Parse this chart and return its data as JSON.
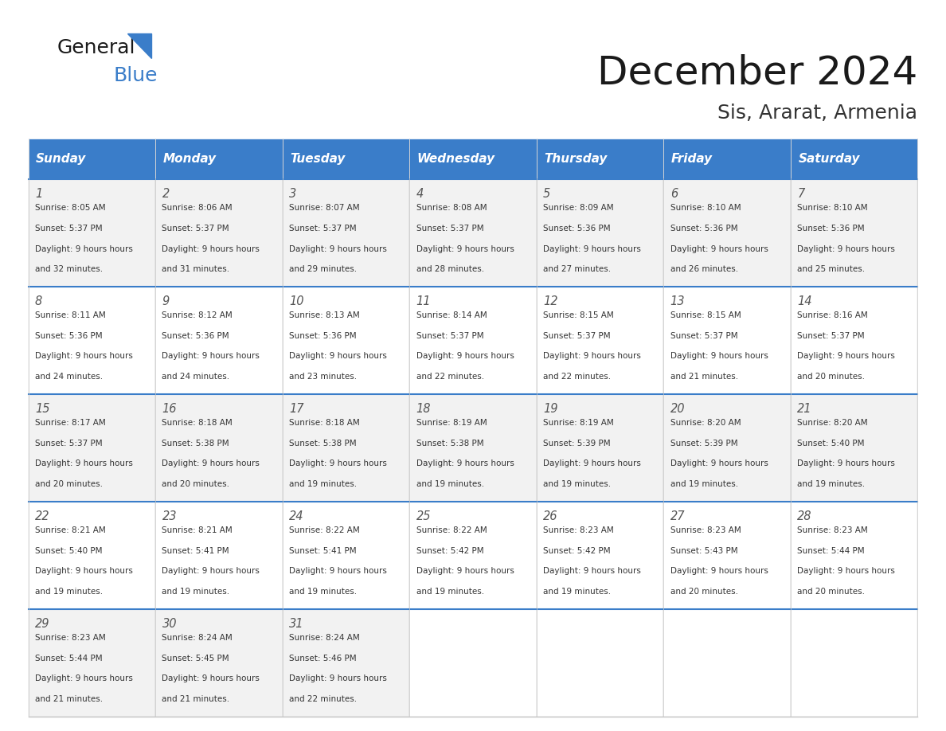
{
  "title": "December 2024",
  "subtitle": "Sis, Ararat, Armenia",
  "days_of_week": [
    "Sunday",
    "Monday",
    "Tuesday",
    "Wednesday",
    "Thursday",
    "Friday",
    "Saturday"
  ],
  "header_bg": "#3A7DC9",
  "header_text": "#FFFFFF",
  "row_bg_odd": "#F2F2F2",
  "row_bg_even": "#FFFFFF",
  "cell_border": "#C8C8C8",
  "day_num_color": "#555555",
  "body_text_color": "#333333",
  "title_color": "#1a1a1a",
  "subtitle_color": "#333333",
  "separator_color": "#3A7DC9",
  "calendar_data": [
    {
      "day": 1,
      "week": 0,
      "dow": 0,
      "sunrise": "8:05 AM",
      "sunset": "5:37 PM",
      "daylight": "9 hours and 32 minutes."
    },
    {
      "day": 2,
      "week": 0,
      "dow": 1,
      "sunrise": "8:06 AM",
      "sunset": "5:37 PM",
      "daylight": "9 hours and 31 minutes."
    },
    {
      "day": 3,
      "week": 0,
      "dow": 2,
      "sunrise": "8:07 AM",
      "sunset": "5:37 PM",
      "daylight": "9 hours and 29 minutes."
    },
    {
      "day": 4,
      "week": 0,
      "dow": 3,
      "sunrise": "8:08 AM",
      "sunset": "5:37 PM",
      "daylight": "9 hours and 28 minutes."
    },
    {
      "day": 5,
      "week": 0,
      "dow": 4,
      "sunrise": "8:09 AM",
      "sunset": "5:36 PM",
      "daylight": "9 hours and 27 minutes."
    },
    {
      "day": 6,
      "week": 0,
      "dow": 5,
      "sunrise": "8:10 AM",
      "sunset": "5:36 PM",
      "daylight": "9 hours and 26 minutes."
    },
    {
      "day": 7,
      "week": 0,
      "dow": 6,
      "sunrise": "8:10 AM",
      "sunset": "5:36 PM",
      "daylight": "9 hours and 25 minutes."
    },
    {
      "day": 8,
      "week": 1,
      "dow": 0,
      "sunrise": "8:11 AM",
      "sunset": "5:36 PM",
      "daylight": "9 hours and 24 minutes."
    },
    {
      "day": 9,
      "week": 1,
      "dow": 1,
      "sunrise": "8:12 AM",
      "sunset": "5:36 PM",
      "daylight": "9 hours and 24 minutes."
    },
    {
      "day": 10,
      "week": 1,
      "dow": 2,
      "sunrise": "8:13 AM",
      "sunset": "5:36 PM",
      "daylight": "9 hours and 23 minutes."
    },
    {
      "day": 11,
      "week": 1,
      "dow": 3,
      "sunrise": "8:14 AM",
      "sunset": "5:37 PM",
      "daylight": "9 hours and 22 minutes."
    },
    {
      "day": 12,
      "week": 1,
      "dow": 4,
      "sunrise": "8:15 AM",
      "sunset": "5:37 PM",
      "daylight": "9 hours and 22 minutes."
    },
    {
      "day": 13,
      "week": 1,
      "dow": 5,
      "sunrise": "8:15 AM",
      "sunset": "5:37 PM",
      "daylight": "9 hours and 21 minutes."
    },
    {
      "day": 14,
      "week": 1,
      "dow": 6,
      "sunrise": "8:16 AM",
      "sunset": "5:37 PM",
      "daylight": "9 hours and 20 minutes."
    },
    {
      "day": 15,
      "week": 2,
      "dow": 0,
      "sunrise": "8:17 AM",
      "sunset": "5:37 PM",
      "daylight": "9 hours and 20 minutes."
    },
    {
      "day": 16,
      "week": 2,
      "dow": 1,
      "sunrise": "8:18 AM",
      "sunset": "5:38 PM",
      "daylight": "9 hours and 20 minutes."
    },
    {
      "day": 17,
      "week": 2,
      "dow": 2,
      "sunrise": "8:18 AM",
      "sunset": "5:38 PM",
      "daylight": "9 hours and 19 minutes."
    },
    {
      "day": 18,
      "week": 2,
      "dow": 3,
      "sunrise": "8:19 AM",
      "sunset": "5:38 PM",
      "daylight": "9 hours and 19 minutes."
    },
    {
      "day": 19,
      "week": 2,
      "dow": 4,
      "sunrise": "8:19 AM",
      "sunset": "5:39 PM",
      "daylight": "9 hours and 19 minutes."
    },
    {
      "day": 20,
      "week": 2,
      "dow": 5,
      "sunrise": "8:20 AM",
      "sunset": "5:39 PM",
      "daylight": "9 hours and 19 minutes."
    },
    {
      "day": 21,
      "week": 2,
      "dow": 6,
      "sunrise": "8:20 AM",
      "sunset": "5:40 PM",
      "daylight": "9 hours and 19 minutes."
    },
    {
      "day": 22,
      "week": 3,
      "dow": 0,
      "sunrise": "8:21 AM",
      "sunset": "5:40 PM",
      "daylight": "9 hours and 19 minutes."
    },
    {
      "day": 23,
      "week": 3,
      "dow": 1,
      "sunrise": "8:21 AM",
      "sunset": "5:41 PM",
      "daylight": "9 hours and 19 minutes."
    },
    {
      "day": 24,
      "week": 3,
      "dow": 2,
      "sunrise": "8:22 AM",
      "sunset": "5:41 PM",
      "daylight": "9 hours and 19 minutes."
    },
    {
      "day": 25,
      "week": 3,
      "dow": 3,
      "sunrise": "8:22 AM",
      "sunset": "5:42 PM",
      "daylight": "9 hours and 19 minutes."
    },
    {
      "day": 26,
      "week": 3,
      "dow": 4,
      "sunrise": "8:23 AM",
      "sunset": "5:42 PM",
      "daylight": "9 hours and 19 minutes."
    },
    {
      "day": 27,
      "week": 3,
      "dow": 5,
      "sunrise": "8:23 AM",
      "sunset": "5:43 PM",
      "daylight": "9 hours and 20 minutes."
    },
    {
      "day": 28,
      "week": 3,
      "dow": 6,
      "sunrise": "8:23 AM",
      "sunset": "5:44 PM",
      "daylight": "9 hours and 20 minutes."
    },
    {
      "day": 29,
      "week": 4,
      "dow": 0,
      "sunrise": "8:23 AM",
      "sunset": "5:44 PM",
      "daylight": "9 hours and 21 minutes."
    },
    {
      "day": 30,
      "week": 4,
      "dow": 1,
      "sunrise": "8:24 AM",
      "sunset": "5:45 PM",
      "daylight": "9 hours and 21 minutes."
    },
    {
      "day": 31,
      "week": 4,
      "dow": 2,
      "sunrise": "8:24 AM",
      "sunset": "5:46 PM",
      "daylight": "9 hours and 22 minutes."
    }
  ],
  "num_weeks": 5,
  "logo_text_general": "General",
  "logo_text_blue": "Blue",
  "logo_color_general": "#1a1a1a",
  "logo_color_blue": "#3A7DC9"
}
